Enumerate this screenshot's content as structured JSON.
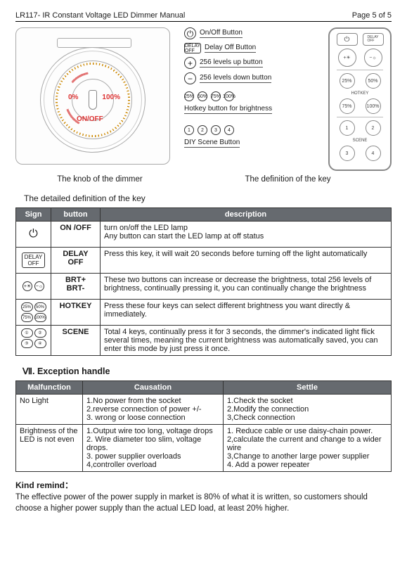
{
  "header": {
    "left": "LR117- IR Constant Voltage LED Dimmer Manual",
    "right": "Page 5 of 5"
  },
  "knob": {
    "zero_label": "0%",
    "hundred_label": "100%",
    "onoff_label": "ON/OFF"
  },
  "legend": {
    "onoff": "On/Off Button",
    "delay": "Delay Off Button",
    "up": "256 levels up button",
    "down": "256 levels down button",
    "hotkey": "Hotkey button for brightness",
    "diy": "DIY  Scene Button",
    "hotkey_pcts": [
      "25%",
      "50%",
      "75%",
      "100%"
    ]
  },
  "captions": {
    "left": "The knob of the dimmer",
    "right": "The definition of the key"
  },
  "keytable": {
    "title": "The detailed definition of the key",
    "header": {
      "sign": "Sign",
      "button": "button",
      "desc": "description"
    },
    "rows": [
      {
        "sign_type": "power",
        "button": "ON /OFF",
        "desc": "turn on/off the LED lamp\nAny button can start the LED lamp at off status"
      },
      {
        "sign_type": "delay",
        "button": "DELAY OFF",
        "desc": "Press this key, it will wait 20 seconds before turning off the light automatically"
      },
      {
        "sign_type": "brt",
        "button": "BRT+\nBRT-",
        "desc": "These two buttons can increase or decrease the brightness, total 256 levels of brightness, continually pressing it, you can continually change the brightness"
      },
      {
        "sign_type": "hotkey",
        "button": "HOTKEY",
        "desc": "Press these four keys can select different brightness you want directly & immediately."
      },
      {
        "sign_type": "scene",
        "button": "SCENE",
        "desc": "Total 4 keys, continually press it for 3 seconds, the dimmer's indicated light flick several times, meaning the current brightness was automatically saved, you can enter this mode by just press it once."
      }
    ]
  },
  "exception": {
    "title": "Ⅶ. Exception handle",
    "header": {
      "mal": "Malfunction",
      "cau": "Causation",
      "set": "Settle"
    },
    "rows": [
      {
        "mal": "No Light",
        "cau": "1.No power from the socket\n2.reverse connection of power +/-\n3. wrong or loose connection",
        "set": "1.Check the socket\n2.Modify the connection\n3,Check connection"
      },
      {
        "mal": "Brightness of the LED is not even",
        "cau": "1.Output wire too long, voltage drops\n2. Wire diameter too slim, voltage drops.\n3. power supplier overloads\n4,controller overload",
        "set": "1. Reduce cable or use daisy-chain power. 2,calculate the current and change to a wider wire\n3,Change to another large power supplier\n4. Add a power repeater"
      }
    ]
  },
  "remind": {
    "title": "Kind remind：",
    "text": "The effective power of the power supply in market is 80% of what it is written, so customers should choose a higher power supply than the actual LED load, at least 20% higher."
  },
  "colors": {
    "header_bg": "#666a6f",
    "border": "#333333",
    "red": "#d33333",
    "orange": "#cc8800"
  }
}
